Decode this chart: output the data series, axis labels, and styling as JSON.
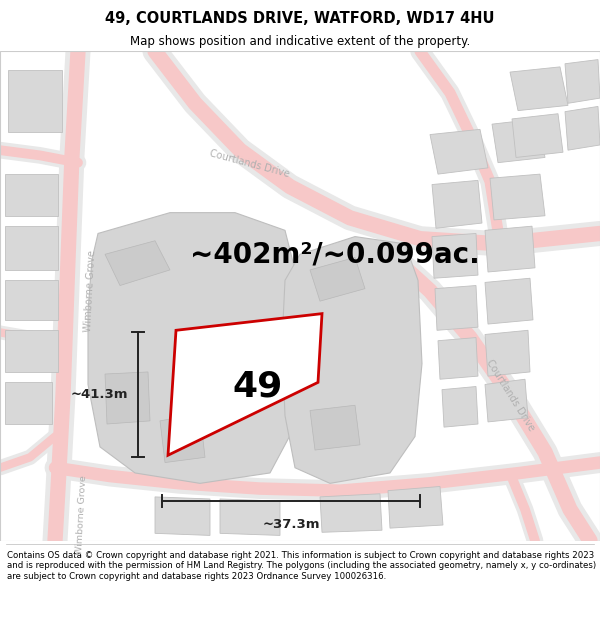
{
  "title": "49, COURTLANDS DRIVE, WATFORD, WD17 4HU",
  "subtitle": "Map shows position and indicative extent of the property.",
  "area_label": "~402m²/~0.099ac.",
  "property_number": "49",
  "dim_width": "~37.3m",
  "dim_height": "~41.3m",
  "footer": "Contains OS data © Crown copyright and database right 2021. This information is subject to Crown copyright and database rights 2023 and is reproduced with the permission of HM Land Registry. The polygons (including the associated geometry, namely x, y co-ordinates) are subject to Crown copyright and database rights 2023 Ordnance Survey 100026316.",
  "bg_color": "#f2f2f2",
  "title_fontsize": 10.5,
  "subtitle_fontsize": 8.5,
  "area_fontsize": 20,
  "number_fontsize": 26,
  "dim_fontsize": 9.5,
  "footer_fontsize": 6.2,
  "road_fill": "#f7c8c8",
  "road_edge": "#f0f0f0",
  "building_fill": "#d8d8d8",
  "building_edge": "#c0c0c0",
  "property_stroke": "#cc0000",
  "property_lw": 2.0,
  "street_label_color": "#b0b0b0",
  "dim_color": "#222222"
}
